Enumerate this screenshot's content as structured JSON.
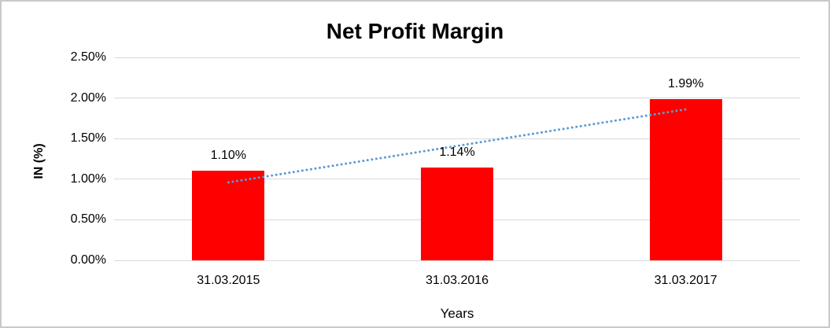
{
  "chart_data": {
    "type": "bar",
    "title": "Net Profit Margin",
    "xlabel": "Years",
    "ylabel": "IN (%)",
    "categories": [
      "31.03.2015",
      "31.03.2016",
      "31.03.2017"
    ],
    "values": [
      1.1,
      1.14,
      1.99
    ],
    "data_labels": [
      "1.10%",
      "1.14%",
      "1.99%"
    ],
    "y_ticks": [
      "2.50%",
      "2.00%",
      "1.50%",
      "1.00%",
      "0.50%",
      "0.00%"
    ],
    "ylim": [
      0,
      2.5
    ],
    "grid": true,
    "legend": "none",
    "trendline": {
      "type": "linear",
      "style": "dotted",
      "start_value": 0.96,
      "end_value": 1.86
    },
    "colors": {
      "bar": "#ff0000",
      "trendline": "#5b9bd5",
      "gridline": "#d9d9d9",
      "text": "#000000",
      "border": "#c9c9c9"
    }
  }
}
